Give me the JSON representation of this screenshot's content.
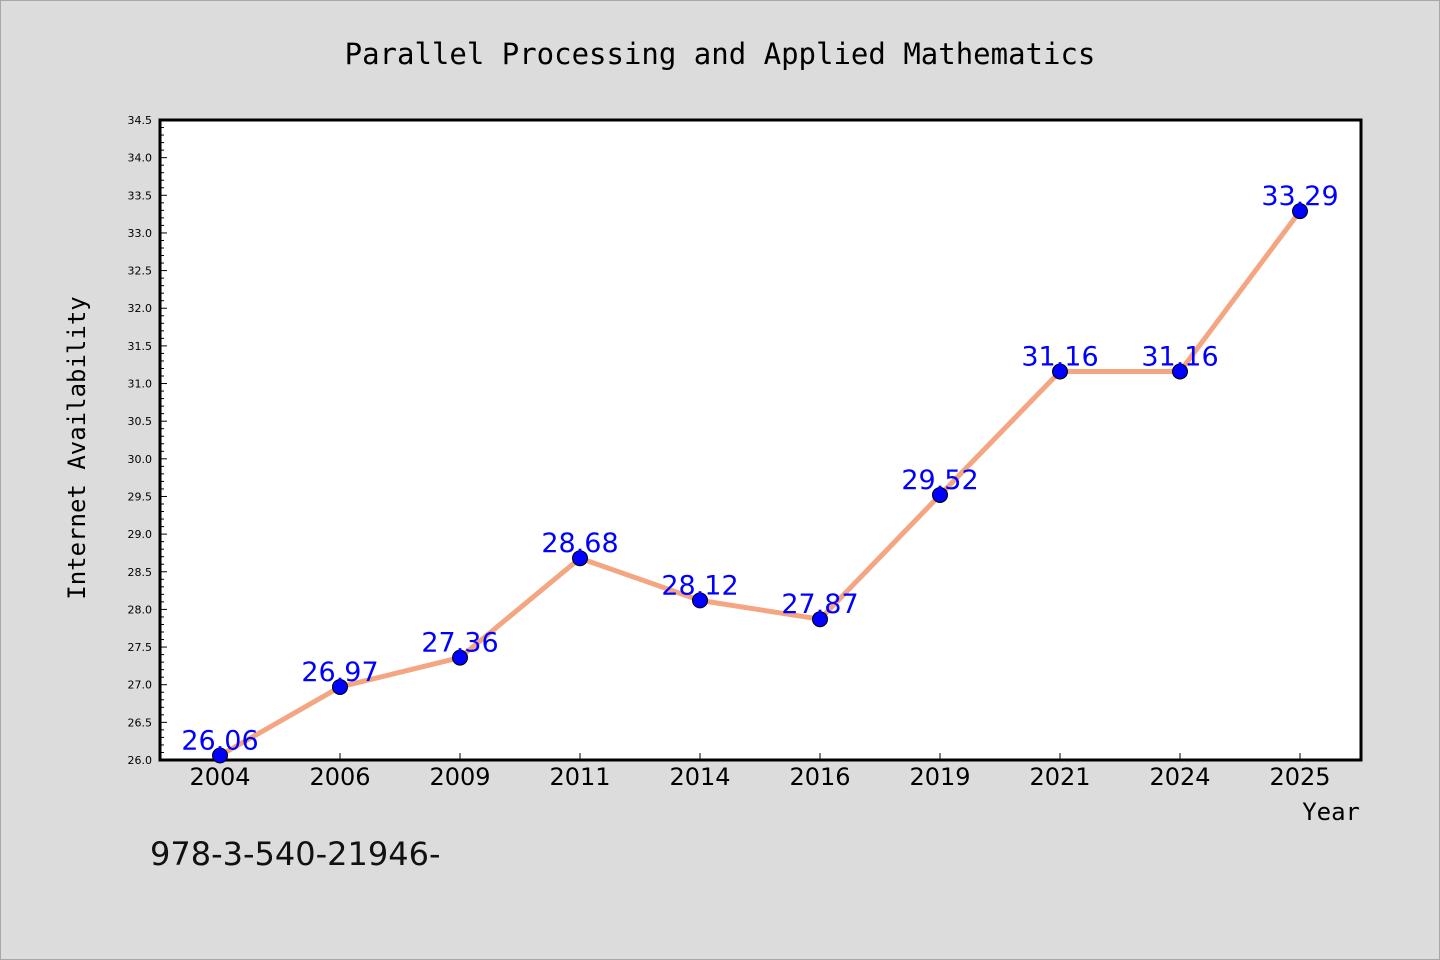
{
  "chart_data": {
    "type": "line",
    "title": "Parallel Processing and Applied Mathematics",
    "xlabel": "Year",
    "ylabel": "Internet Availability",
    "categories": [
      "2004",
      "2006",
      "2009",
      "2011",
      "2014",
      "2016",
      "2019",
      "2021",
      "2024",
      "2025"
    ],
    "series": [
      {
        "values": [
          26.06,
          26.97,
          27.36,
          28.68,
          28.12,
          27.87,
          29.52,
          31.16,
          31.16,
          33.29
        ],
        "line_color": "#f4a582",
        "marker_color": "#0000ff"
      }
    ],
    "value_labels": [
      "26.06",
      "26.97",
      "27.36",
      "28.68",
      "28.12",
      "27.87",
      "29.52",
      "31.16",
      "31.16",
      "33.29"
    ],
    "ylim": [
      26.0,
      34.5
    ],
    "yticks": [
      "26.0",
      "26.5",
      "27.0",
      "27.5",
      "28.0",
      "28.5",
      "29.0",
      "29.5",
      "30.0",
      "30.5",
      "31.0",
      "31.5",
      "32.0",
      "32.5",
      "33.0",
      "33.5",
      "34.0",
      "34.5"
    ],
    "grid": false,
    "label_color": "#0000ff"
  },
  "footnote": "978-3-540-21946-"
}
